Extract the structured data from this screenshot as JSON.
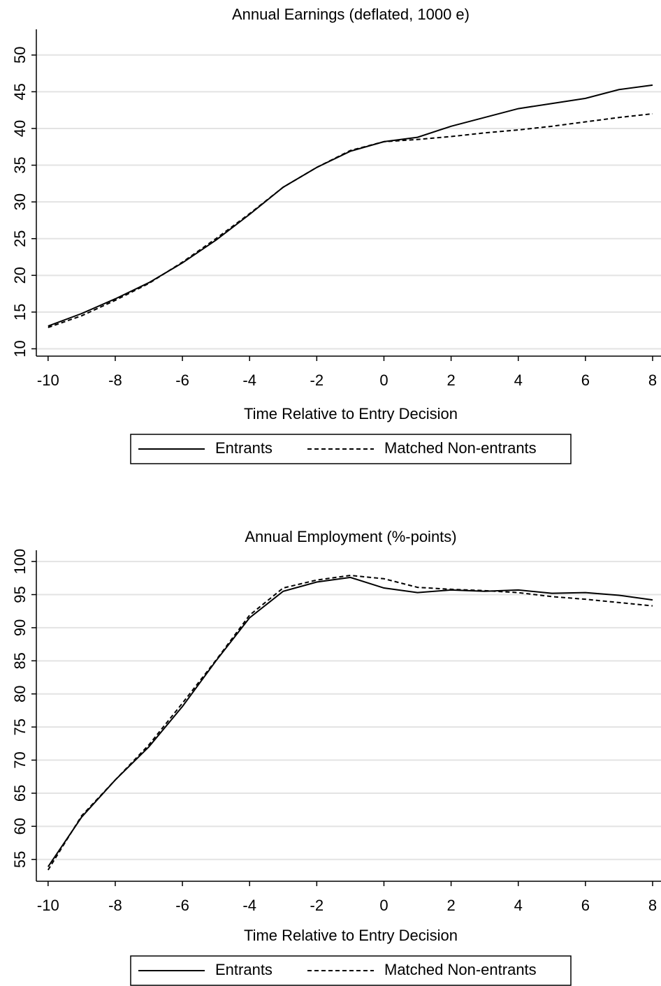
{
  "chart_data": [
    {
      "type": "line",
      "title": "Annual Earnings (deflated, 1000 e)",
      "x_label": "Time Relative to Entry Decision",
      "x": [
        -10,
        -9,
        -8,
        -7,
        -6,
        -5,
        -4,
        -3,
        -2,
        -1,
        0,
        1,
        2,
        3,
        4,
        5,
        6,
        7,
        8
      ],
      "xlim": [
        -10.35,
        8.25
      ],
      "xticks": [
        -10,
        -8,
        -6,
        -4,
        -2,
        0,
        2,
        4,
        6,
        8
      ],
      "ylim": [
        9,
        53.5
      ],
      "yticks": [
        10,
        15,
        20,
        25,
        30,
        35,
        40,
        45,
        50
      ],
      "grid": true,
      "series": [
        {
          "name": "Entrants",
          "color": "#000000",
          "dash": "solid",
          "values": [
            13.1,
            14.8,
            16.8,
            19.0,
            21.7,
            24.8,
            28.3,
            32.0,
            34.7,
            36.9,
            38.2,
            38.8,
            40.3,
            41.5,
            42.7,
            43.4,
            44.1,
            45.3,
            45.9
          ]
        },
        {
          "name": "Matched Non-entrants",
          "color": "#000000",
          "dash": "dashed",
          "values": [
            12.9,
            14.5,
            16.6,
            18.9,
            21.8,
            25.0,
            28.4,
            32.0,
            34.7,
            37.0,
            38.2,
            38.5,
            38.9,
            39.4,
            39.8,
            40.3,
            40.9,
            41.5,
            42.0
          ]
        }
      ]
    },
    {
      "type": "line",
      "title": "Annual Employment (%-points)",
      "x_label": "Time Relative to Entry Decision",
      "x": [
        -10,
        -9,
        -8,
        -7,
        -6,
        -5,
        -4,
        -3,
        -2,
        -1,
        0,
        1,
        2,
        3,
        4,
        5,
        6,
        7,
        8
      ],
      "xlim": [
        -10.35,
        8.25
      ],
      "xticks": [
        -10,
        -8,
        -6,
        -4,
        -2,
        0,
        2,
        4,
        6,
        8
      ],
      "ylim": [
        51.7,
        101.7
      ],
      "yticks": [
        55,
        60,
        65,
        70,
        75,
        80,
        85,
        90,
        95,
        100
      ],
      "grid": true,
      "series": [
        {
          "name": "Entrants",
          "color": "#000000",
          "dash": "solid",
          "values": [
            53.9,
            61.4,
            67.0,
            72.0,
            78.1,
            85.0,
            91.5,
            95.5,
            96.9,
            97.6,
            96.0,
            95.3,
            95.7,
            95.5,
            95.7,
            95.2,
            95.3,
            94.9,
            94.2
          ]
        },
        {
          "name": "Matched Non-entrants",
          "color": "#000000",
          "dash": "dashed",
          "values": [
            53.4,
            61.6,
            67.0,
            72.3,
            78.6,
            85.1,
            91.9,
            96.0,
            97.2,
            97.9,
            97.4,
            96.1,
            95.8,
            95.6,
            95.3,
            94.7,
            94.3,
            93.8,
            93.3
          ]
        }
      ]
    }
  ]
}
